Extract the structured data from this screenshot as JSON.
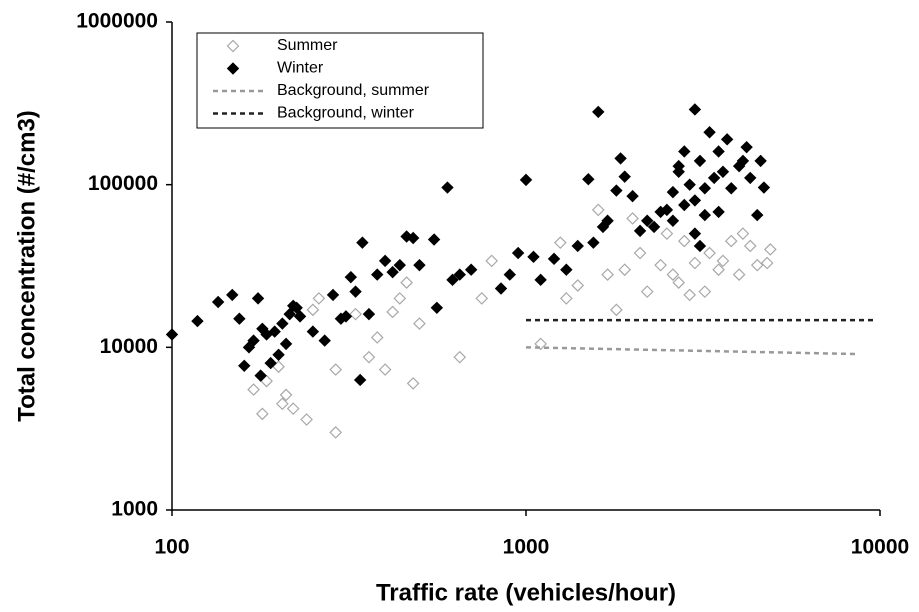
{
  "chart_data": {
    "type": "scatter",
    "xlabel": "Traffic rate (vehicles/hour)",
    "ylabel": "Total concentration (#/cm3)",
    "xlog": true,
    "ylog": true,
    "xlim": [
      100,
      10000
    ],
    "ylim": [
      1000,
      1000000
    ],
    "xticks": [
      100,
      1000,
      10000
    ],
    "yticks": [
      1000,
      10000,
      100000,
      1000000
    ],
    "legend": "upper left",
    "series": [
      {
        "name": "Summer",
        "color": "#a8a8a8",
        "marker": "open-diamond",
        "x": [
          170,
          180,
          185,
          200,
          205,
          210,
          220,
          240,
          250,
          260,
          290,
          290,
          330,
          360,
          380,
          400,
          420,
          440,
          460,
          480,
          500,
          650,
          750,
          800,
          1100,
          1250,
          1300,
          1400,
          1600,
          1700,
          1800,
          1900,
          2000,
          2100,
          2200,
          2400,
          2600,
          2700,
          2800,
          2900,
          3000,
          3200,
          3300,
          3600,
          3800,
          4000,
          4100,
          4300,
          4500,
          4800,
          4900,
          2500,
          3500
        ],
        "values": [
          5500,
          3900,
          6200,
          7600,
          4500,
          5100,
          4200,
          3600,
          17000,
          20000,
          7300,
          3000,
          16000,
          8700,
          11500,
          7300,
          16500,
          20000,
          25000,
          6000,
          14000,
          8700,
          20000,
          34000,
          10500,
          44000,
          20000,
          24000,
          70000,
          28000,
          17000,
          30000,
          62000,
          38000,
          22000,
          32000,
          28000,
          25000,
          45000,
          21000,
          33000,
          22000,
          38000,
          34000,
          45000,
          28000,
          50000,
          42000,
          32000,
          33000,
          40000,
          50000,
          30000
        ]
      },
      {
        "name": "Winter",
        "color": "#000000",
        "marker": "filled-diamond",
        "x": [
          100,
          118,
          135,
          148,
          155,
          160,
          165,
          170,
          175,
          178,
          180,
          185,
          190,
          195,
          200,
          205,
          210,
          215,
          220,
          225,
          230,
          250,
          270,
          285,
          300,
          310,
          320,
          330,
          340,
          345,
          360,
          380,
          400,
          420,
          440,
          460,
          480,
          500,
          550,
          560,
          600,
          620,
          650,
          700,
          850,
          900,
          950,
          1000,
          1050,
          1100,
          1200,
          1300,
          1400,
          1500,
          1550,
          1600,
          1650,
          1700,
          1800,
          1850,
          1900,
          2000,
          2100,
          2200,
          2300,
          2400,
          2500,
          2600,
          2700,
          2800,
          2900,
          3000,
          3000,
          3100,
          3200,
          3300,
          3400,
          3500,
          3600,
          3700,
          3800,
          4000,
          4100,
          4200,
          4300,
          4500,
          4600,
          4700,
          2600,
          2800,
          3000,
          3100,
          2700,
          3200,
          3500
        ],
        "values": [
          12000,
          14500,
          19000,
          21000,
          15000,
          7700,
          10000,
          11000,
          20000,
          6700,
          13000,
          12000,
          8000,
          12500,
          9000,
          14000,
          10500,
          16000,
          18000,
          17500,
          15500,
          12500,
          11000,
          21000,
          15000,
          15500,
          27000,
          22000,
          6300,
          44000,
          16000,
          28000,
          34000,
          29000,
          32000,
          48000,
          47000,
          32000,
          46000,
          17500,
          96000,
          26000,
          28000,
          30000,
          23000,
          28000,
          38000,
          107000,
          36000,
          26000,
          35000,
          30000,
          42000,
          108000,
          44000,
          280000,
          55000,
          60000,
          92000,
          145000,
          112000,
          85000,
          52000,
          60000,
          55000,
          68000,
          70000,
          90000,
          120000,
          160000,
          100000,
          290000,
          80000,
          140000,
          65000,
          210000,
          110000,
          160000,
          120000,
          190000,
          95000,
          130000,
          140000,
          170000,
          110000,
          65000,
          140000,
          96000,
          60000,
          75000,
          50000,
          42000,
          130000,
          95000,
          68000
        ]
      },
      {
        "name": "Background, summer",
        "color": "#999999",
        "marker": "dashed-line",
        "x": [
          1000,
          8500
        ],
        "values": [
          10000,
          9100
        ]
      },
      {
        "name": "Background, winter",
        "color": "#222222",
        "marker": "dashed-line",
        "x": [
          1000,
          9700
        ],
        "values": [
          14700,
          14700
        ]
      }
    ]
  }
}
